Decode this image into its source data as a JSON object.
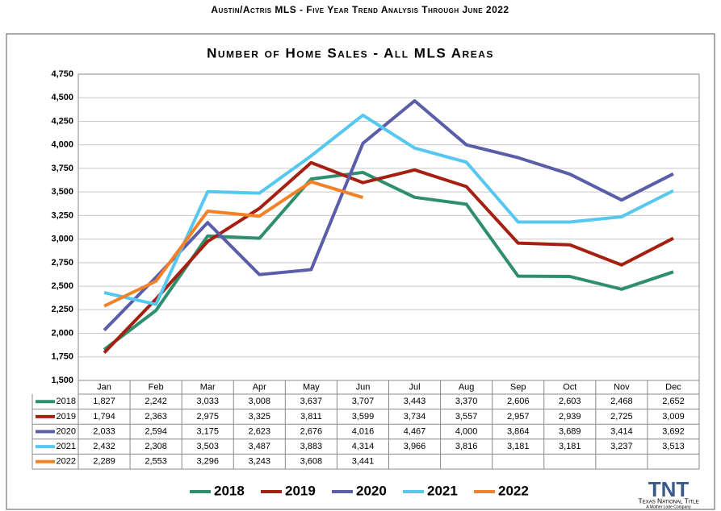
{
  "header": {
    "title": "Austin/Actris MLS - Five Year Trend Analysis Through June 2022"
  },
  "chart_data": {
    "type": "line",
    "title": "Number of Home Sales - All MLS Areas",
    "categories": [
      "Jan",
      "Feb",
      "Mar",
      "Apr",
      "May",
      "Jun",
      "Jul",
      "Aug",
      "Sep",
      "Oct",
      "Nov",
      "Dec"
    ],
    "ylim": [
      1500,
      4750
    ],
    "yticks": [
      {
        "value": 1500,
        "label": "1,500"
      },
      {
        "value": 1750,
        "label": "1,750"
      },
      {
        "value": 2000,
        "label": "2,000"
      },
      {
        "value": 2250,
        "label": "2,250"
      },
      {
        "value": 2500,
        "label": "2,500"
      },
      {
        "value": 2750,
        "label": "2,750"
      },
      {
        "value": 3000,
        "label": "3,000"
      },
      {
        "value": 3250,
        "label": "3,250"
      },
      {
        "value": 3500,
        "label": "3,500"
      },
      {
        "value": 3750,
        "label": "3,750"
      },
      {
        "value": 4000,
        "label": "4,000"
      },
      {
        "value": 4250,
        "label": "4,250"
      },
      {
        "value": 4500,
        "label": "4,500"
      },
      {
        "value": 4750,
        "label": "4,750"
      }
    ],
    "grid": true,
    "series": [
      {
        "name": "2018",
        "color": "#2e8f6f",
        "values": [
          1827,
          2242,
          3033,
          3008,
          3637,
          3707,
          3443,
          3370,
          2606,
          2603,
          2468,
          2652
        ],
        "value_labels": [
          "1,827",
          "2,242",
          "3,033",
          "3,008",
          "3,637",
          "3,707",
          "3,443",
          "3,370",
          "2,606",
          "2,603",
          "2,468",
          "2,652"
        ]
      },
      {
        "name": "2019",
        "color": "#a52010",
        "values": [
          1794,
          2363,
          2975,
          3325,
          3811,
          3599,
          3734,
          3557,
          2957,
          2939,
          2725,
          3009
        ],
        "value_labels": [
          "1,794",
          "2,363",
          "2,975",
          "3,325",
          "3,811",
          "3,599",
          "3,734",
          "3,557",
          "2,957",
          "2,939",
          "2,725",
          "3,009"
        ]
      },
      {
        "name": "2020",
        "color": "#5a5ea8",
        "values": [
          2033,
          2594,
          3175,
          2623,
          2676,
          4016,
          4467,
          4000,
          3864,
          3689,
          3414,
          3692
        ],
        "value_labels": [
          "2,033",
          "2,594",
          "3,175",
          "2,623",
          "2,676",
          "4,016",
          "4,467",
          "4,000",
          "3,864",
          "3,689",
          "3,414",
          "3,692"
        ]
      },
      {
        "name": "2021",
        "color": "#56c8f0",
        "values": [
          2432,
          2308,
          3503,
          3487,
          3883,
          4314,
          3966,
          3816,
          3181,
          3181,
          3237,
          3513
        ],
        "value_labels": [
          "2,432",
          "2,308",
          "3,503",
          "3,487",
          "3,883",
          "4,314",
          "3,966",
          "3,816",
          "3,181",
          "3,181",
          "3,237",
          "3,513"
        ]
      },
      {
        "name": "2022",
        "color": "#f28128",
        "values": [
          2289,
          2553,
          3296,
          3243,
          3608,
          3441,
          null,
          null,
          null,
          null,
          null,
          null
        ],
        "value_labels": [
          "2,289",
          "2,553",
          "3,296",
          "3,243",
          "3,608",
          "3,441",
          null,
          null,
          null,
          null,
          null,
          null
        ]
      }
    ]
  },
  "logo": {
    "mark": "TNT",
    "name": "Texas National Title",
    "tagline": "A Mother Lode Company"
  }
}
